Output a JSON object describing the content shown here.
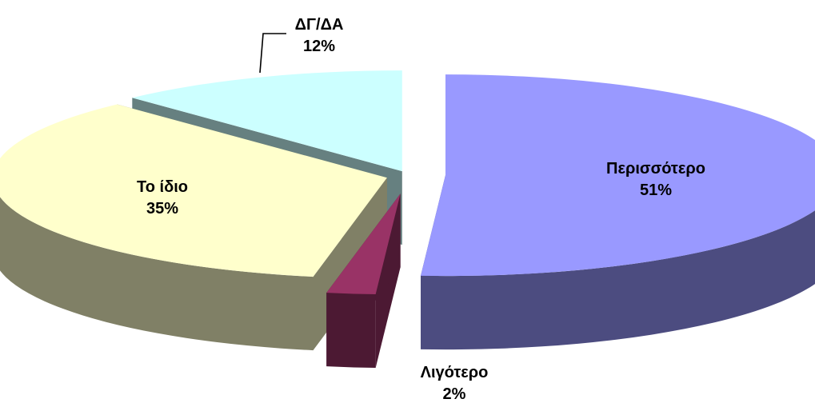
{
  "chart_data": {
    "type": "pie",
    "style": "3d-exploded",
    "slices": [
      {
        "label": "Περισσότερο",
        "pct_text": "51%",
        "value": 51,
        "top_color": "#9999FF",
        "side_color": "#4C4C80"
      },
      {
        "label": "Λιγότερο",
        "pct_text": "2%",
        "value": 2,
        "top_color": "#993366",
        "side_color": "#4C1933"
      },
      {
        "label": "Το ίδιο",
        "pct_text": "35%",
        "value": 35,
        "top_color": "#FFFFCC",
        "side_color": "#808066"
      },
      {
        "label": "ΔΓ/ΔΑ",
        "pct_text": "12%",
        "value": 12,
        "top_color": "#CCFFFF",
        "side_color": "#668080"
      }
    ]
  }
}
